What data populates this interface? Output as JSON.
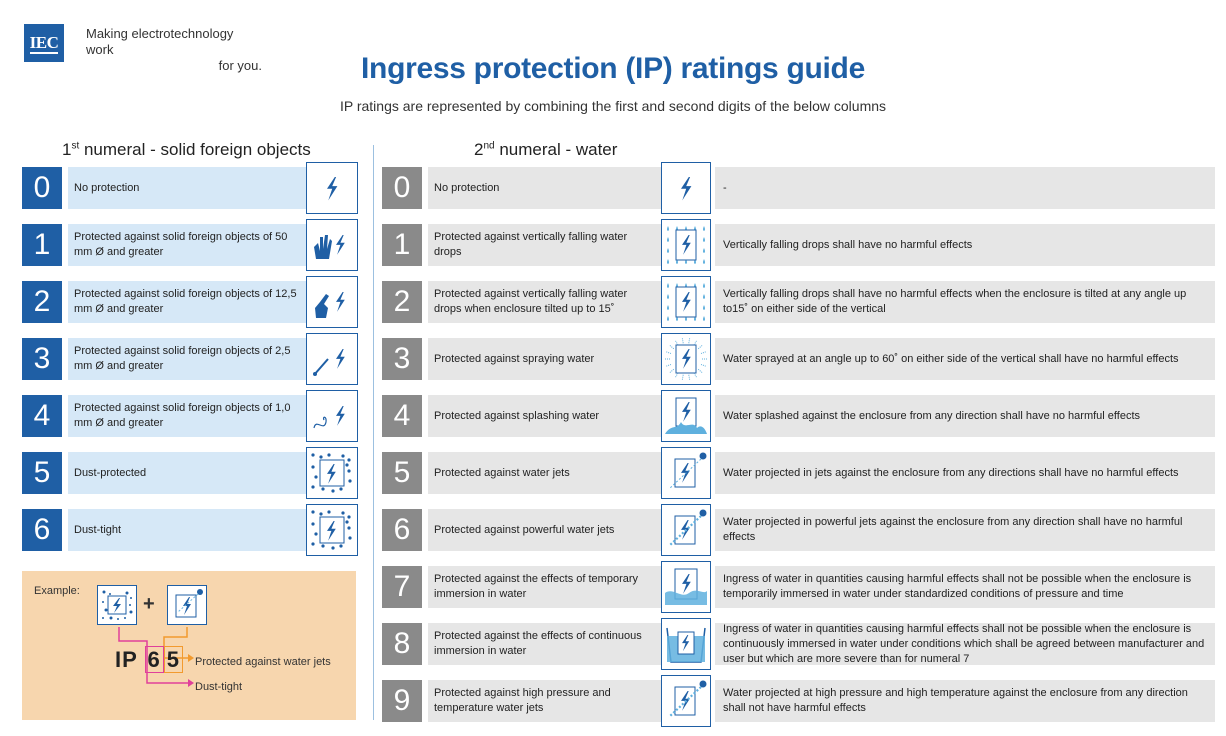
{
  "header": {
    "logo_text": "IEC",
    "tagline_line1": "Making  electrotechnology work",
    "tagline_line2": "for you.",
    "title": "Ingress protection (IP) ratings guide",
    "subtitle": "IP ratings are represented by combining the first and second digits of the below columns"
  },
  "first_numeral": {
    "heading_prefix": "1",
    "heading_sup": "st",
    "heading_text": " numeral - solid foreign objects",
    "rows": [
      {
        "digit": "0",
        "text": "No protection",
        "icon": "enclosure-bolt-icon"
      },
      {
        "digit": "1",
        "text": "Protected against solid foreign objects of 50 mm Ø and greater",
        "icon": "hand-icon"
      },
      {
        "digit": "2",
        "text": "Protected against solid foreign objects of 12,5 mm Ø and greater",
        "icon": "finger-icon"
      },
      {
        "digit": "3",
        "text": "Protected against solid foreign objects of 2,5 mm Ø and greater",
        "icon": "tool-icon"
      },
      {
        "digit": "4",
        "text": "Protected against solid foreign objects of 1,0 mm Ø and greater",
        "icon": "wire-icon"
      },
      {
        "digit": "5",
        "text": "Dust-protected",
        "icon": "dust-protected-icon"
      },
      {
        "digit": "6",
        "text": "Dust-tight",
        "icon": "dust-tight-icon"
      }
    ]
  },
  "second_numeral": {
    "heading_prefix": "2",
    "heading_sup": "nd",
    "heading_text": " numeral - water",
    "rows": [
      {
        "digit": "0",
        "text": "No protection",
        "icon": "enclosure-bolt-icon",
        "detail": "-"
      },
      {
        "digit": "1",
        "text": "Protected against vertically falling water drops",
        "icon": "vertical-drops-icon",
        "detail": "Vertically falling drops shall have no harmful effects"
      },
      {
        "digit": "2",
        "text": "Protected against vertically falling water drops when enclosure tilted up to 15˚",
        "icon": "tilted-drops-icon",
        "detail": "Vertically falling drops shall have no harmful effects when the enclosure is tilted at any angle up to15˚ on either side of the vertical"
      },
      {
        "digit": "3",
        "text": "Protected against spraying water",
        "icon": "spraying-water-icon",
        "detail": "Water sprayed at an angle up to 60˚ on either side of the vertical shall have no harmful effects"
      },
      {
        "digit": "4",
        "text": "Protected against splashing water",
        "icon": "splashing-water-icon",
        "detail": "Water splashed against the enclosure from any direction shall have no harmful effects"
      },
      {
        "digit": "5",
        "text": "Protected against water jets",
        "icon": "water-jet-icon",
        "detail": "Water projected in jets against the enclosure from any directions shall have no harmful effects"
      },
      {
        "digit": "6",
        "text": "Protected against powerful water jets",
        "icon": "powerful-jet-icon",
        "detail": "Water projected in powerful jets against the enclosure from any direction shall have no harmful effects"
      },
      {
        "digit": "7",
        "text": "Protected against the effects of temporary immersion in water",
        "icon": "temporary-immersion-icon",
        "detail": "Ingress of water in quantities causing harmful effects shall not be possible when the enclosure is temporarily immersed in water under standardized conditions of pressure and time"
      },
      {
        "digit": "8",
        "text": "Protected against the effects of continuous immersion in water",
        "icon": "continuous-immersion-icon",
        "detail": "Ingress of water in quantities causing harmful effects shall not be possible when the enclosure is continuously immersed in water under conditions which shall be agreed between manufacturer and user but which are more severe than for numeral 7"
      },
      {
        "digit": "9",
        "text": "Protected against high pressure and temperature water jets",
        "icon": "high-pressure-jet-icon",
        "detail": "Water projected at high pressure and high temperature against the enclosure from any direction shall not have harmful effects"
      }
    ]
  },
  "example": {
    "label": "Example:",
    "plus": "+",
    "code_prefix": "IP",
    "code_first": "6",
    "code_second": "5",
    "first_meaning": "Dust-tight",
    "second_meaning": "Protected against water jets"
  },
  "colors": {
    "brand_blue": "#1f5fa5",
    "solid_row_bg": "#d6e8f7",
    "water_row_bg": "#e6e6e6",
    "water_digit_bg": "#8a8a8a",
    "example_bg": "#f7d6ae",
    "arrow_orange": "#f29a2e",
    "arrow_pink": "#e0409a"
  }
}
